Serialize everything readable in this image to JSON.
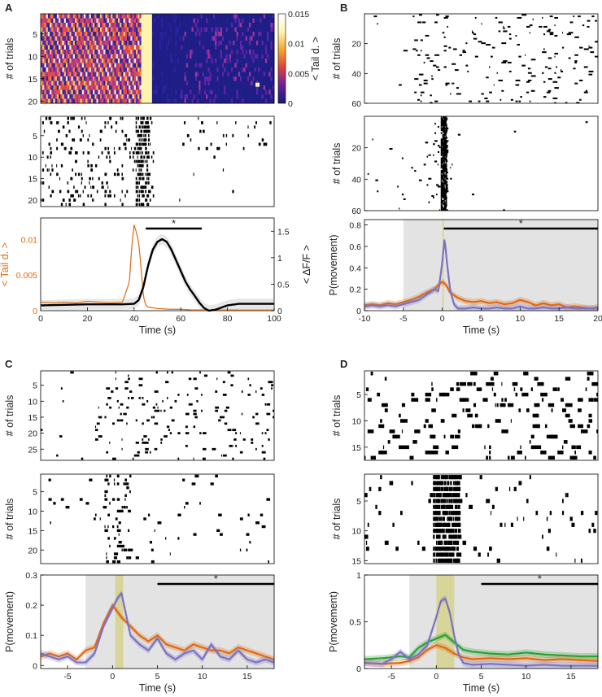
{
  "panels": [
    {
      "letter": "A",
      "heatmap": {
        "ylabel": "# of trials",
        "yticks": [
          5,
          10,
          15,
          20
        ],
        "colorbar_ticks": [
          "0.015",
          "0.01",
          "0.005",
          "0"
        ],
        "colorbar_label": "< Tail d. >",
        "colormap": [
          "#1a1a78",
          "#6a1f9e",
          "#e0403a",
          "#f7a531",
          "#fff6b0",
          "#ffffff"
        ]
      },
      "raster": {
        "yticks": [
          5,
          10,
          15,
          20
        ]
      },
      "trace": {
        "xlabel": "Time (s)",
        "xticks": [
          0,
          20,
          40,
          60,
          80,
          100
        ],
        "left_ylabel": "< Tail d. >",
        "left_yticks": [
          "0",
          "0.005",
          "0.01"
        ],
        "right_ylabel": "< ΔF/F >",
        "right_yticks": [
          "0",
          "0.5",
          "1",
          "1.5"
        ],
        "significance": "*",
        "tail_color": "#e06a12",
        "dff_color": "#000000"
      }
    },
    {
      "letter": "B",
      "raster_top": {
        "ylabel": "# of trials",
        "yticks": [
          20,
          40,
          60
        ]
      },
      "raster_mid": {
        "ylabel": "# of trials",
        "yticks": [
          20,
          40,
          60
        ]
      },
      "prob": {
        "ylabel": "P(movement)",
        "xlabel": "Time (s)",
        "xticks": [
          -10,
          -5,
          0,
          5,
          10,
          15,
          20
        ],
        "yticks": [
          "0",
          "0.2",
          "0.4",
          "0.6",
          "0.8"
        ],
        "significance": "*"
      }
    },
    {
      "letter": "C",
      "raster_top": {
        "ylabel": "# of trials",
        "yticks": [
          5,
          10,
          15,
          20,
          25
        ]
      },
      "raster_mid": {
        "ylabel": "# of trials",
        "yticks": [
          5,
          10,
          15,
          20
        ]
      },
      "prob": {
        "ylabel": "P(movement)",
        "xlabel": "Time (s)",
        "xticks": [
          -5,
          0,
          5,
          10,
          15
        ],
        "yticks": [
          "0",
          "0.1",
          "0.2",
          "0.3"
        ],
        "significance": "*"
      }
    },
    {
      "letter": "D",
      "raster_top": {
        "ylabel": "# of trials",
        "yticks": [
          5,
          10,
          15
        ]
      },
      "raster_mid": {
        "ylabel": "# of trials",
        "yticks": [
          5,
          10,
          15
        ]
      },
      "prob": {
        "ylabel": "P(movement)",
        "xlabel": "Time (s)",
        "xticks": [
          -5,
          0,
          5,
          10,
          15
        ],
        "yticks": [
          "0",
          "0.5",
          "1"
        ],
        "significance": "*"
      }
    }
  ],
  "colors": {
    "orange": "#e06a12",
    "purple": "#7b72c2",
    "green": "#27a332",
    "window_gray": "#e3e3e3",
    "stim_yellow": "#d8d59a"
  },
  "chart_data": [
    {
      "panel": "A",
      "type": "line",
      "x_range": [
        0,
        100
      ],
      "series": [
        {
          "axis": "left",
          "x": [
            0,
            5,
            10,
            15,
            20,
            25,
            30,
            35,
            38,
            39,
            40,
            41,
            42,
            43,
            44,
            45,
            46,
            48,
            50,
            55,
            60,
            65,
            70,
            75,
            80,
            85,
            90,
            95,
            100
          ],
          "values": [
            0.0012,
            0.0011,
            0.0012,
            0.0011,
            0.0013,
            0.0012,
            0.0011,
            0.0012,
            0.004,
            0.009,
            0.012,
            0.011,
            0.0095,
            0.006,
            0.002,
            0.0008,
            0.0005,
            0.0004,
            0.0003,
            0.0002,
            0.0002,
            0.0001,
            0.0001,
            0.0001,
            0.0001,
            0.0001,
            0.0001,
            0.0001,
            0.0001
          ]
        },
        {
          "axis": "right",
          "x": [
            0,
            10,
            20,
            30,
            35,
            40,
            42,
            44,
            46,
            48,
            50,
            52,
            54,
            56,
            58,
            60,
            62,
            64,
            66,
            68,
            70,
            72,
            75,
            80,
            85,
            90,
            95,
            100
          ],
          "values": [
            0.1,
            0.11,
            0.12,
            0.12,
            0.12,
            0.13,
            0.2,
            0.45,
            0.85,
            1.15,
            1.3,
            1.35,
            1.3,
            1.15,
            0.95,
            0.75,
            0.55,
            0.4,
            0.28,
            0.15,
            0.05,
            0.0,
            0.02,
            0.1,
            0.13,
            0.13,
            0.13,
            0.13
          ]
        }
      ],
      "significance_range": [
        45,
        69
      ],
      "left_ylim": [
        0,
        0.013
      ],
      "right_ylim": [
        0,
        1.75
      ]
    },
    {
      "panel": "B",
      "type": "line",
      "x_range": [
        -10,
        20
      ],
      "ylim": [
        0,
        0.85
      ],
      "shaded_window": [
        -5,
        20
      ],
      "stimulus_window": [
        0,
        0.2
      ],
      "significance_range": [
        0.2,
        20
      ],
      "series": [
        {
          "color_key": "orange",
          "x": [
            -10,
            -9,
            -8,
            -7,
            -6,
            -5,
            -4,
            -3,
            -2,
            -1,
            -0.5,
            0,
            0.5,
            1,
            2,
            3,
            4,
            5,
            6,
            7,
            8,
            9,
            10,
            11,
            12,
            13,
            14,
            15,
            16,
            17,
            18,
            19,
            20
          ],
          "values": [
            0.05,
            0.06,
            0.05,
            0.07,
            0.06,
            0.08,
            0.1,
            0.13,
            0.17,
            0.2,
            0.24,
            0.27,
            0.24,
            0.17,
            0.12,
            0.09,
            0.08,
            0.09,
            0.07,
            0.08,
            0.06,
            0.07,
            0.1,
            0.08,
            0.05,
            0.07,
            0.05,
            0.06,
            0.03,
            0.04,
            0.03,
            0.02,
            0.03
          ]
        },
        {
          "color_key": "purple",
          "x": [
            -10,
            -9,
            -8,
            -7,
            -6,
            -5,
            -4,
            -3,
            -2,
            -1,
            -0.5,
            0,
            0.3,
            0.6,
            1,
            1.5,
            2,
            3,
            4,
            5,
            6,
            7,
            8,
            9,
            10,
            11,
            12,
            13,
            14,
            15,
            16,
            17,
            18,
            19,
            20
          ],
          "values": [
            0.04,
            0.05,
            0.04,
            0.05,
            0.04,
            0.06,
            0.08,
            0.1,
            0.15,
            0.2,
            0.18,
            0.45,
            0.68,
            0.45,
            0.2,
            0.06,
            0.02,
            0.02,
            0.03,
            0.02,
            0.02,
            0.03,
            0.02,
            0.02,
            0.04,
            0.02,
            0.02,
            0.03,
            0.02,
            0.02,
            0.03,
            0.02,
            0.02,
            0.02,
            0.02
          ]
        }
      ]
    },
    {
      "panel": "C",
      "type": "line",
      "x_range": [
        -8,
        18
      ],
      "ylim": [
        -0.01,
        0.3
      ],
      "shaded_window": [
        -3,
        18
      ],
      "stimulus_window": [
        0.3,
        1.2
      ],
      "significance_range": [
        5,
        18
      ],
      "series": [
        {
          "color_key": "orange",
          "x": [
            -8,
            -7,
            -6,
            -5,
            -4,
            -3,
            -2,
            -1,
            0,
            0.5,
            1,
            2,
            3,
            4,
            5,
            6,
            7,
            8,
            9,
            10,
            11,
            12,
            13,
            14,
            15,
            16,
            17,
            18
          ],
          "values": [
            0.03,
            0.04,
            0.03,
            0.04,
            0.02,
            0.05,
            0.06,
            0.14,
            0.2,
            0.18,
            0.16,
            0.13,
            0.1,
            0.08,
            0.1,
            0.07,
            0.06,
            0.05,
            0.07,
            0.06,
            0.05,
            0.05,
            0.04,
            0.06,
            0.05,
            0.04,
            0.03,
            0.02
          ]
        },
        {
          "color_key": "purple",
          "x": [
            -8,
            -7,
            -6,
            -5,
            -4,
            -3,
            -2,
            -1,
            0,
            0.5,
            1,
            1.5,
            2,
            3,
            4,
            5,
            6,
            7,
            8,
            9,
            10,
            11,
            12,
            13,
            14,
            15,
            16,
            17,
            18
          ],
          "values": [
            0.04,
            0.03,
            0.02,
            0.03,
            0.01,
            0.01,
            0.04,
            0.13,
            0.19,
            0.22,
            0.24,
            0.17,
            0.1,
            0.07,
            0.05,
            0.09,
            0.04,
            0.02,
            0.04,
            0.05,
            0.02,
            0.07,
            0.03,
            0.02,
            0.05,
            0.02,
            0.01,
            0.02,
            0.01
          ]
        }
      ]
    },
    {
      "panel": "D",
      "type": "line",
      "x_range": [
        -8,
        18
      ],
      "ylim": [
        0,
        1
      ],
      "shaded_window": [
        -3,
        18
      ],
      "stimulus_window": [
        0,
        2
      ],
      "significance_range": [
        5,
        18
      ],
      "series": [
        {
          "color_key": "green",
          "x": [
            -8,
            -6,
            -4,
            -3,
            -2,
            -1,
            0,
            1,
            2,
            3,
            4,
            5,
            6,
            8,
            10,
            12,
            14,
            16,
            18
          ],
          "values": [
            0.1,
            0.11,
            0.13,
            0.12,
            0.22,
            0.28,
            0.32,
            0.36,
            0.28,
            0.2,
            0.18,
            0.17,
            0.16,
            0.15,
            0.17,
            0.15,
            0.14,
            0.13,
            0.13
          ]
        },
        {
          "color_key": "orange",
          "x": [
            -8,
            -6,
            -4,
            -3,
            -2,
            -1,
            0,
            1,
            2,
            3,
            4,
            6,
            8,
            10,
            12,
            14,
            16,
            18
          ],
          "values": [
            0.06,
            0.05,
            0.06,
            0.08,
            0.12,
            0.2,
            0.25,
            0.22,
            0.16,
            0.12,
            0.1,
            0.11,
            0.1,
            0.11,
            0.09,
            0.1,
            0.09,
            0.08
          ]
        },
        {
          "color_key": "purple",
          "x": [
            -8,
            -6,
            -5,
            -4,
            -3,
            -2,
            -1,
            0,
            0.5,
            1,
            1.5,
            2,
            2.5,
            3,
            4,
            6,
            8,
            10,
            12,
            14,
            16,
            18
          ],
          "values": [
            0.06,
            0.05,
            0.1,
            0.18,
            0.1,
            0.15,
            0.25,
            0.55,
            0.72,
            0.75,
            0.6,
            0.35,
            0.15,
            0.06,
            0.04,
            0.05,
            0.04,
            0.03,
            0.04,
            0.03,
            0.03,
            0.03
          ]
        }
      ]
    }
  ]
}
